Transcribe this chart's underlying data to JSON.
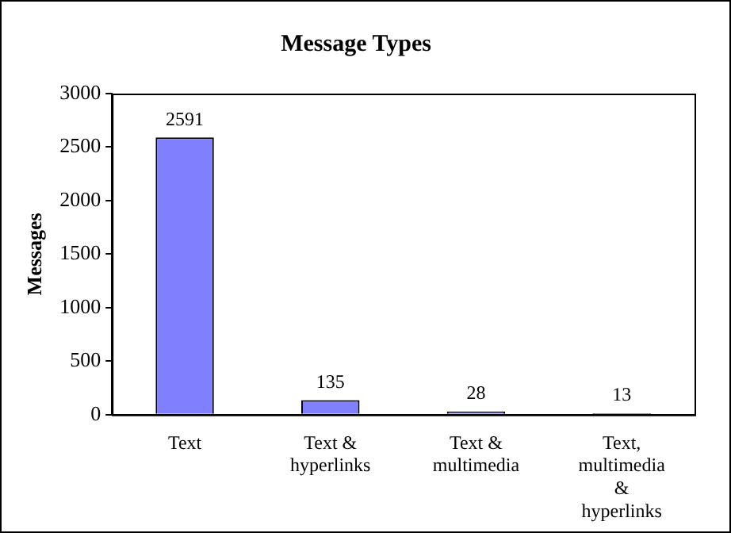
{
  "chart_data": {
    "type": "bar",
    "title": "Message Types",
    "ylabel": "Messages",
    "categories": [
      "Text",
      "Text &\nhyperlinks",
      "Text &\nmultimedia",
      "Text,\nmultimedia\n&\nhyperlinks"
    ],
    "values": [
      2591,
      135,
      28,
      13
    ],
    "color": "#8080ff",
    "ylim": [
      0,
      3000
    ],
    "yticks": [
      0,
      500,
      1000,
      1500,
      2000,
      2500,
      3000
    ],
    "grid": false,
    "data_labels": true
  }
}
